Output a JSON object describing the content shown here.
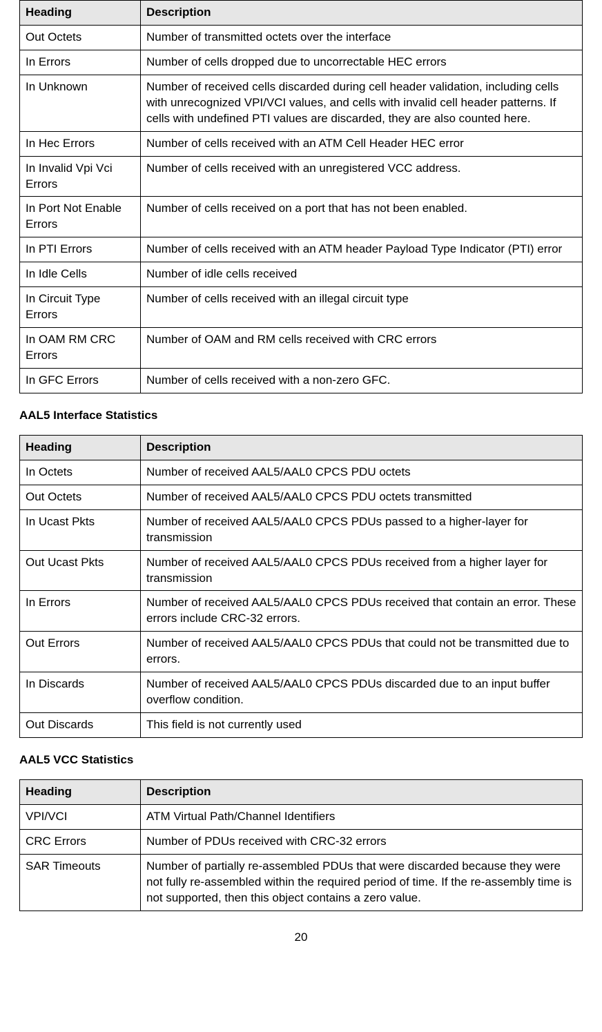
{
  "page_number": "20",
  "tables": [
    {
      "title": null,
      "header_col1": "Heading",
      "header_col2": "Description",
      "rows": [
        {
          "heading": "Out Octets",
          "description": "Number of transmitted octets over the interface"
        },
        {
          "heading": "In Errors",
          "description": "Number of cells dropped due to uncorrectable HEC errors"
        },
        {
          "heading": "In Unknown",
          "description": "Number of received cells discarded during cell header validation, including cells with unrecognized VPI/VCI values, and cells with invalid cell header patterns.   If cells with undefined PTI values are discarded, they are also counted here."
        },
        {
          "heading": "In Hec Errors",
          "description": "Number of cells received with an ATM Cell Header HEC error"
        },
        {
          "heading": "In Invalid Vpi Vci Errors",
          "description": "Number of cells received with an unregistered VCC address."
        },
        {
          "heading": "In Port Not Enable Errors",
          "description": "Number of cells received on a port that has not been enabled."
        },
        {
          "heading": "In PTI Errors",
          "description": "Number of cells received with an ATM header Payload Type Indicator (PTI) error"
        },
        {
          "heading": "In Idle Cells",
          "description": "Number of idle cells received"
        },
        {
          "heading": "In Circuit Type Errors",
          "description": "Number of cells received with an illegal circuit type"
        },
        {
          "heading": "In OAM RM CRC Errors",
          "description": "Number of OAM and RM cells received with CRC errors"
        },
        {
          "heading": "In GFC Errors",
          "description": "Number of cells received with a non-zero GFC."
        }
      ]
    },
    {
      "title": "AAL5 Interface Statistics",
      "header_col1": "Heading",
      "header_col2": "Description",
      "rows": [
        {
          "heading": "In Octets",
          "description": "Number of received AAL5/AAL0 CPCS PDU octets"
        },
        {
          "heading": "Out Octets",
          "description": "Number of received AAL5/AAL0 CPCS PDU octets transmitted"
        },
        {
          "heading": "In Ucast Pkts",
          "description": "Number of received AAL5/AAL0 CPCS PDUs passed to a higher-layer for transmission"
        },
        {
          "heading": "Out Ucast Pkts",
          "description": "Number of received AAL5/AAL0 CPCS PDUs received from a higher layer for transmission"
        },
        {
          "heading": "In Errors",
          "description": "Number of received AAL5/AAL0 CPCS PDUs received that contain an error.   These errors include CRC-32 errors."
        },
        {
          "heading": "Out Errors",
          "description": "Number of received AAL5/AAL0 CPCS PDUs that could not be transmitted due to errors."
        },
        {
          "heading": "In Discards",
          "description": "Number of received AAL5/AAL0 CPCS PDUs discarded due to an input buffer overflow condition."
        },
        {
          "heading": "Out Discards",
          "description": "This field is not currently used"
        }
      ]
    },
    {
      "title": "AAL5 VCC Statistics",
      "header_col1": "Heading",
      "header_col2": "Description",
      "rows": [
        {
          "heading": "VPI/VCI",
          "description": "ATM Virtual Path/Channel Identifiers"
        },
        {
          "heading": "CRC Errors",
          "description": "Number of PDUs received with CRC-32 errors"
        },
        {
          "heading": "SAR Timeouts",
          "description": "Number of partially re-assembled PDUs that were discarded because they were not fully re-assembled within the required period of time.   If the re-assembly time is not supported, then this object contains a zero value."
        }
      ]
    }
  ]
}
